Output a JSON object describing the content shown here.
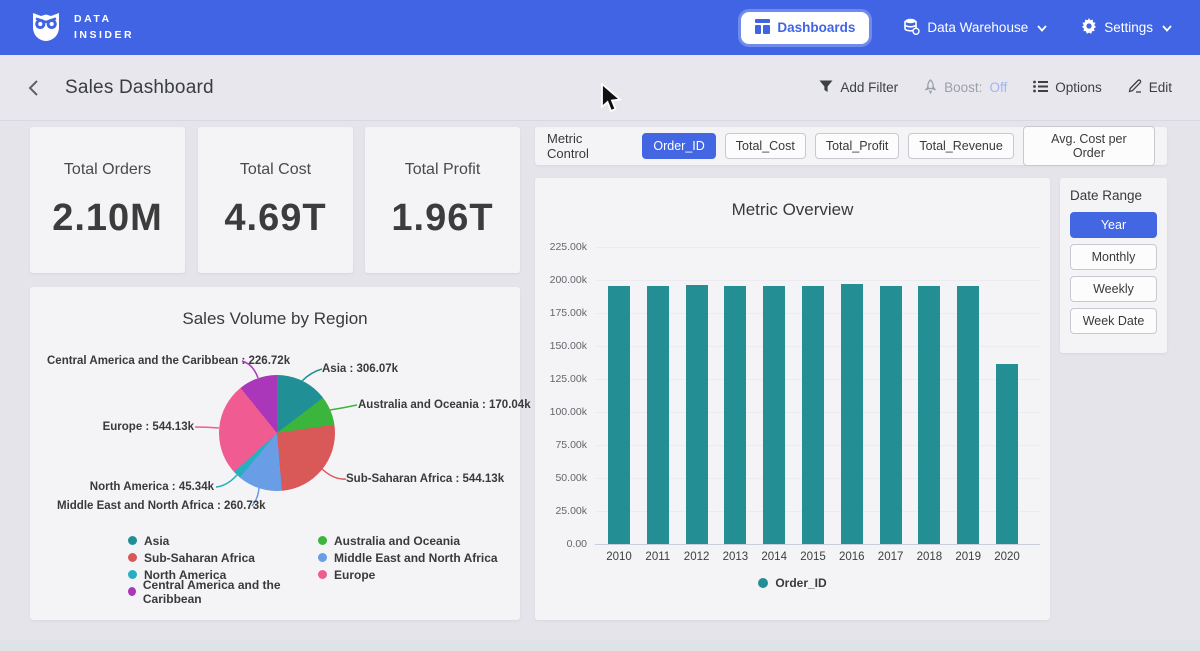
{
  "nav": {
    "brand_line1": "DATA",
    "brand_line2": "INSIDER",
    "dashboards": "Dashboards",
    "data_warehouse": "Data Warehouse",
    "settings": "Settings"
  },
  "header": {
    "title": "Sales Dashboard",
    "add_filter": "Add Filter",
    "boost_label": "Boost:",
    "boost_value": "Off",
    "options": "Options",
    "edit": "Edit"
  },
  "kpis": [
    {
      "label": "Total Orders",
      "value": "2.10M"
    },
    {
      "label": "Total Cost",
      "value": "4.69T"
    },
    {
      "label": "Total Profit",
      "value": "1.96T"
    }
  ],
  "metric_control": {
    "label": "Metric Control",
    "options": [
      {
        "label": "Order_ID",
        "selected": true
      },
      {
        "label": "Total_Cost",
        "selected": false
      },
      {
        "label": "Total_Profit",
        "selected": false
      },
      {
        "label": "Total_Revenue",
        "selected": false
      },
      {
        "label": "Avg. Cost per Order",
        "selected": false
      }
    ]
  },
  "date_range": {
    "label": "Date Range",
    "options": [
      {
        "label": "Year",
        "selected": true
      },
      {
        "label": "Monthly",
        "selected": false
      },
      {
        "label": "Weekly",
        "selected": false
      },
      {
        "label": "Week Date",
        "selected": false
      }
    ]
  },
  "colors": {
    "nav_blue": "#4164e4",
    "accent_blue": "#4366e3",
    "bar_teal": "#238f94",
    "boost_off": "#9fb4ee"
  },
  "chart_data": [
    {
      "type": "bar",
      "title": "Metric Overview",
      "categories": [
        "2010",
        "2011",
        "2012",
        "2013",
        "2014",
        "2015",
        "2016",
        "2017",
        "2018",
        "2019",
        "2020"
      ],
      "series": [
        {
          "name": "Order_ID",
          "color": "#238f94",
          "values": [
            195800,
            195700,
            196500,
            195800,
            195600,
            195600,
            196600,
            195800,
            195700,
            195600,
            136400
          ]
        }
      ],
      "xlabel": "",
      "ylabel": "",
      "ylim": [
        0,
        225000
      ],
      "yticks": [
        {
          "v": 0,
          "label": "0.00"
        },
        {
          "v": 25000,
          "label": "25.00k"
        },
        {
          "v": 50000,
          "label": "50.00k"
        },
        {
          "v": 75000,
          "label": "75.00k"
        },
        {
          "v": 100000,
          "label": "100.00k"
        },
        {
          "v": 125000,
          "label": "125.00k"
        },
        {
          "v": 150000,
          "label": "150.00k"
        },
        {
          "v": 175000,
          "label": "175.00k"
        },
        {
          "v": 200000,
          "label": "200.00k"
        },
        {
          "v": 225000,
          "label": "225.00k"
        }
      ],
      "grid": true,
      "legend_position": "bottom"
    },
    {
      "type": "pie",
      "title": "Sales Volume by Region",
      "slices": [
        {
          "name": "Asia",
          "value": 306070,
          "display": "306.07k",
          "color": "#218f96"
        },
        {
          "name": "Australia and Oceania",
          "value": 170040,
          "display": "170.04k",
          "color": "#3cb53c"
        },
        {
          "name": "Sub-Saharan Africa",
          "value": 544130,
          "display": "544.13k",
          "color": "#d95858"
        },
        {
          "name": "Middle East and North Africa",
          "value": 260730,
          "display": "260.73k",
          "color": "#699de6"
        },
        {
          "name": "North America",
          "value": 45340,
          "display": "45.34k",
          "color": "#27afc0"
        },
        {
          "name": "Europe",
          "value": 544130,
          "display": "544.13k",
          "color": "#f05c92"
        },
        {
          "name": "Central America and the Caribbean",
          "value": 226720,
          "display": "226.72k",
          "color": "#aa36ba"
        }
      ],
      "label_format": "{name} : {display}",
      "legend_position": "bottom"
    }
  ]
}
